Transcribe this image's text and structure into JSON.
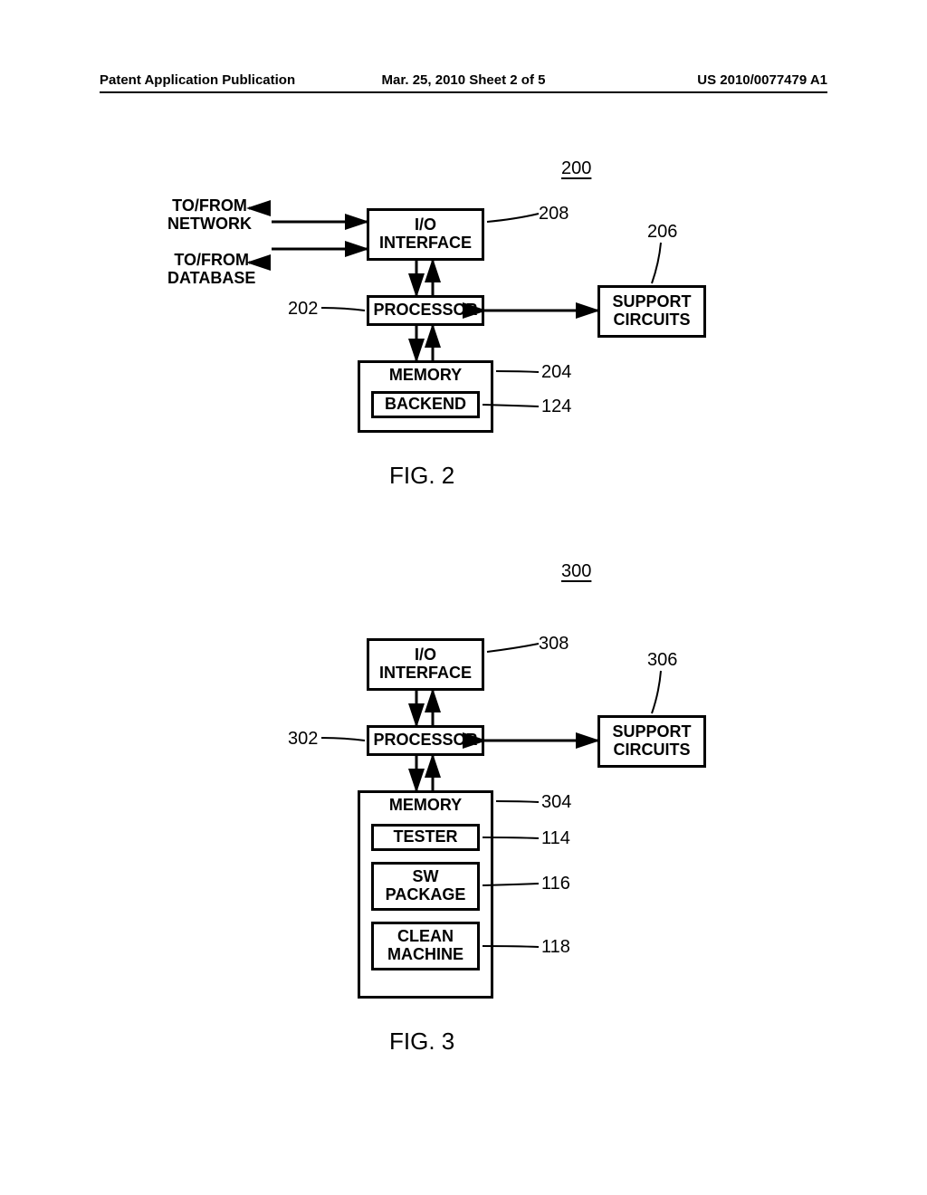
{
  "header": {
    "left": "Patent Application Publication",
    "center": "Mar. 25, 2010  Sheet 2 of 5",
    "right": "US 2010/0077479 A1"
  },
  "fig2": {
    "ref_number": "200",
    "caption": "FIG. 2",
    "io_interface": "I/O\nINTERFACE",
    "processor": "PROCESSOR",
    "memory": "MEMORY",
    "backend": "BACKEND",
    "support_circuits": "SUPPORT\nCIRCUITS",
    "to_from_network": "TO/FROM\nNETWORK",
    "to_from_database": "TO/FROM\nDATABASE",
    "ref_io": "208",
    "ref_processor": "202",
    "ref_memory": "204",
    "ref_backend": "124",
    "ref_support": "206",
    "style": {
      "line_width": 3,
      "box_border": "#000000",
      "text_color": "#000000",
      "background": "#ffffff",
      "font_size_box": 18,
      "font_size_ref": 20,
      "font_size_cap": 26
    }
  },
  "fig3": {
    "ref_number": "300",
    "caption": "FIG. 3",
    "io_interface": "I/O\nINTERFACE",
    "processor": "PROCESSOR",
    "memory": "MEMORY",
    "tester": "TESTER",
    "sw_package": "SW\nPACKAGE",
    "clean_machine": "CLEAN\nMACHINE",
    "support_circuits": "SUPPORT\nCIRCUITS",
    "ref_io": "308",
    "ref_processor": "302",
    "ref_memory": "304",
    "ref_tester": "114",
    "ref_sw": "116",
    "ref_clean": "118",
    "ref_support": "306",
    "style": {
      "line_width": 3,
      "box_border": "#000000",
      "text_color": "#000000",
      "background": "#ffffff",
      "font_size_box": 18,
      "font_size_ref": 20,
      "font_size_cap": 26
    }
  }
}
